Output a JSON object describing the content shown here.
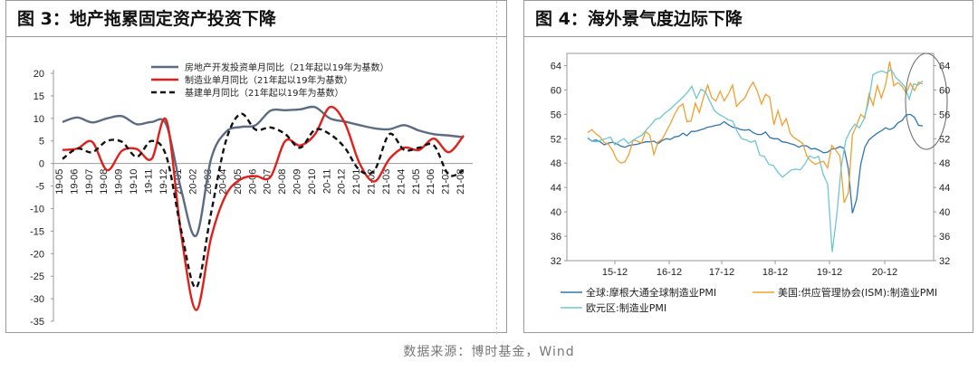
{
  "charts": [
    {
      "title": "图 3：地产拖累固定资产投资下降",
      "chart_data": {
        "type": "line",
        "categories": [
          "19-05",
          "19-06",
          "19-07",
          "19-08",
          "19-09",
          "19-10",
          "19-11",
          "19-12",
          "20-01",
          "20-02",
          "20-03",
          "20-04",
          "20-05",
          "20-06",
          "20-07",
          "20-08",
          "20-09",
          "20-10",
          "20-11",
          "20-12",
          "21-01",
          "21-02",
          "21-03",
          "21-04",
          "21-05",
          "21-06",
          "21-07",
          "21-08"
        ],
        "ylim": [
          -35,
          20
        ],
        "yticks": [
          20,
          15,
          10,
          5,
          0,
          -5,
          -10,
          -15,
          -20,
          -25,
          -30,
          -35
        ],
        "legend_position": "top",
        "series": [
          {
            "name": "房地产开发投资单月同比（21年起以19年为基数）",
            "color": "#5a6b83",
            "dash": "",
            "values": [
              9.2,
              10.2,
              9.1,
              10.0,
              10.5,
              8.7,
              9.2,
              8.5,
              -6.0,
              -16.0,
              1.0,
              7.0,
              8.1,
              8.5,
              11.7,
              11.8,
              12.0,
              12.5,
              10.0,
              9.3,
              8.5,
              7.8,
              7.6,
              8.5,
              7.3,
              6.5,
              6.2,
              5.8
            ]
          },
          {
            "name": "制造业单月同比（21年起以19年为基数）",
            "color": "#e0201b",
            "dash": "",
            "values": [
              3.0,
              3.3,
              4.8,
              -1.5,
              2.8,
              3.2,
              1.0,
              9.5,
              -16.0,
              -32.5,
              -16.5,
              -7.0,
              -3.5,
              -2.8,
              -3.0,
              5.0,
              4.0,
              6.5,
              12.5,
              9.0,
              0.0,
              -4.0,
              1.0,
              3.5,
              3.0,
              5.5,
              2.5,
              6.2
            ]
          },
          {
            "name": "基建单月同比（21年起以19年为基数）",
            "color": "#111111",
            "dash": "6,4",
            "values": [
              1.0,
              3.3,
              2.5,
              5.0,
              4.8,
              1.5,
              5.0,
              1.5,
              -15.0,
              -27.5,
              -11.0,
              5.0,
              11.0,
              7.5,
              8.0,
              6.5,
              3.5,
              7.5,
              6.5,
              3.5,
              -1.5,
              -1.5,
              6.5,
              3.0,
              3.5,
              4.0,
              -2.5,
              -1.5
            ]
          }
        ]
      }
    },
    {
      "title": "图 4：海外景气度边际下降",
      "chart_data": {
        "type": "line",
        "xticks": [
          "15-12",
          "16-12",
          "17-12",
          "18-12",
          "19-12",
          "20-12"
        ],
        "ylim": [
          32,
          66
        ],
        "yticks": [
          64,
          60,
          56,
          52,
          48,
          44,
          40,
          36,
          32
        ],
        "legend_position": "bottom",
        "annotation": "ellipse around latest readings",
        "series": [
          {
            "name": "全球:摩根大通全球制造业PMI",
            "color": "#2e75b6",
            "values": [
              52.1,
              51.6,
              51.8,
              51.5,
              51.0,
              51.3,
              51.4,
              51.2,
              50.8,
              50.6,
              50.9,
              51.0,
              51.1,
              51.3,
              51.5,
              51.5,
              51.6,
              51.2,
              51.7,
              52.0,
              51.9,
              52.3,
              52.4,
              52.9,
              52.5,
              53.2,
              53.2,
              53.4,
              53.6,
              53.9,
              54.0,
              54.2,
              54.3,
              54.8,
              54.3,
              53.9,
              53.8,
              53.5,
              53.4,
              53.5,
              53.0,
              52.7,
              52.7,
              53.1,
              52.2,
              52.0,
              52.0,
              51.5,
              51.4,
              51.2,
              51.0,
              50.6,
              50.9,
              50.8,
              50.3,
              50.4,
              50.1,
              49.7,
              49.8,
              50.3,
              50.4,
              50.7,
              50.4,
              47.1,
              39.8,
              42.0,
              47.8,
              50.6,
              51.8,
              52.4,
              52.9,
              53.3,
              53.8,
              53.5,
              53.8,
              54.6,
              55.0,
              55.9,
              56.0,
              55.5,
              54.2,
              54.1
            ]
          },
          {
            "name": "美国:供应管理协会(ISM):制造业PMI",
            "color": "#f0a030",
            "values": [
              53.0,
              53.5,
              52.8,
              52.3,
              51.4,
              51.1,
              50.1,
              48.6,
              48.0,
              48.2,
              49.5,
              51.8,
              51.6,
              51.3,
              53.2,
              52.6,
              49.4,
              51.5,
              51.9,
              53.2,
              54.5,
              56.0,
              57.2,
              57.7,
              54.8,
              54.9,
              57.8,
              56.3,
              58.8,
              60.8,
              58.7,
              58.2,
              59.8,
              58.2,
              59.3,
              60.8,
              57.3,
              58.1,
              58.7,
              60.2,
              61.3,
              59.8,
              57.7,
              59.3,
              58.8,
              54.3,
              56.6,
              54.2,
              55.3,
              52.8,
              52.1,
              51.7,
              51.2,
              49.1,
              48.3,
              47.8,
              48.1,
              48.3,
              47.2,
              50.9,
              50.1,
              49.1,
              41.5,
              43.1,
              52.6,
              54.2,
              56.0,
              55.4,
              59.3,
              57.5,
              60.7,
              58.7,
              60.8,
              64.7,
              60.7,
              61.2,
              60.6,
              59.5,
              61.1,
              59.9,
              61.3,
              61.0
            ]
          },
          {
            "name": "欧元区:制造业PMI",
            "color": "#6fc7cf",
            "values": [
              52.2,
              51.6,
              51.5,
              51.8,
              52.0,
              52.3,
              51.0,
              51.6,
              52.0,
              51.2,
              51.7,
              52.2,
              52.6,
              53.5,
              54.3,
              55.2,
              55.4,
              56.2,
              56.7,
              57.4,
              58.1,
              58.8,
              59.6,
              60.6,
              58.6,
              60.1,
              59.7,
              58.1,
              56.6,
              56.0,
              55.6,
              55.1,
              54.9,
              53.2,
              52.0,
              51.8,
              51.4,
              51.7,
              49.3,
              49.1,
              47.8,
              47.6,
              46.5,
              45.7,
              46.3,
              46.9,
              47.0,
              46.9,
              47.9,
              49.2,
              48.8,
              49.1,
              46.2,
              44.5,
              33.4,
              39.4,
              47.4,
              51.8,
              53.3,
              54.4,
              53.8,
              55.2,
              57.9,
              62.5,
              62.9,
              63.1,
              62.8,
              63.4,
              62.1,
              61.4,
              60.6,
              58.5,
              61.0,
              60.8,
              61.5
            ]
          }
        ]
      }
    }
  ],
  "source": "数据来源：博时基金，Wind"
}
